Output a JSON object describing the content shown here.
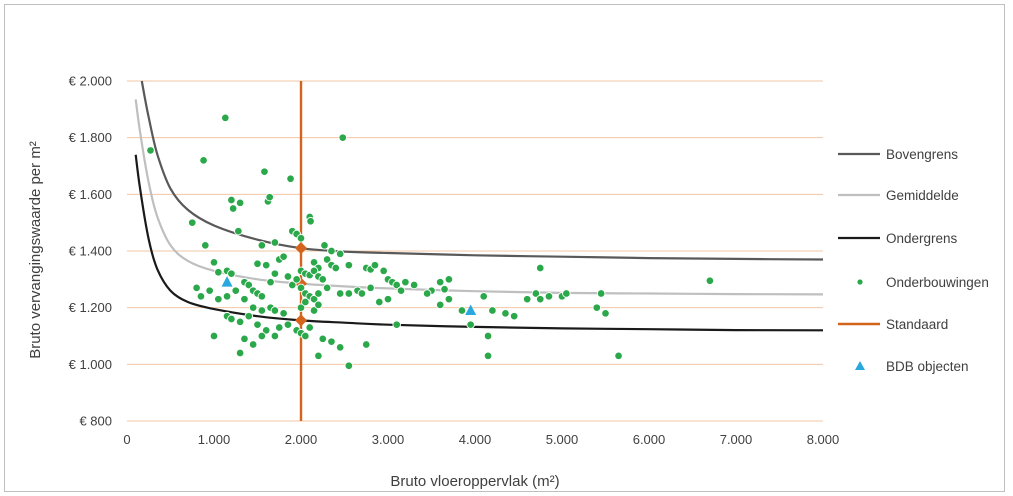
{
  "chart_data": {
    "type": "scatter",
    "xlabel": "Bruto vloeroppervlak (m²)",
    "ylabel": "Bruto vervangingswaarde per m²",
    "xlim": [
      0,
      8000
    ],
    "ylim": [
      800,
      2000
    ],
    "x_ticks": [
      0,
      1000,
      2000,
      3000,
      4000,
      5000,
      6000,
      7000,
      8000
    ],
    "x_tick_labels": [
      "0",
      "1.000",
      "2.000",
      "3.000",
      "4.000",
      "5.000",
      "6.000",
      "7.000",
      "8.000"
    ],
    "y_ticks": [
      800,
      1000,
      1200,
      1400,
      1600,
      1800,
      2000
    ],
    "y_tick_labels": [
      "€ 800",
      "€ 1.000",
      "€ 1.200",
      "€ 1.400",
      "€ 1.600",
      "€ 1.800",
      "€ 2.000"
    ],
    "grid": "horizontal",
    "legend_position": "right",
    "colors": {
      "bovengrens": "#595959",
      "gemiddelde": "#bfbfbf",
      "ondergrens": "#1a1a1a",
      "onderbouwingen": "#2aa84a",
      "standaard": "#d4631c",
      "bdb": "#29a8e0",
      "grid": "#f2c6a4"
    },
    "series": [
      {
        "name": "Bovengrens",
        "kind": "line",
        "x": [
          170,
          250,
          350,
          500,
          700,
          1000,
          1500,
          2000,
          2500,
          3000,
          4000,
          5000,
          6000,
          7000,
          8000
        ],
        "y": [
          2000,
          1870,
          1740,
          1620,
          1545,
          1490,
          1440,
          1410,
          1398,
          1393,
          1385,
          1380,
          1375,
          1372,
          1370
        ]
      },
      {
        "name": "Gemiddelde",
        "kind": "line",
        "x": [
          100,
          150,
          250,
          350,
          500,
          700,
          1000,
          1500,
          2000,
          2500,
          3000,
          4000,
          5000,
          6000,
          7000,
          8000
        ],
        "y": [
          1935,
          1820,
          1640,
          1520,
          1420,
          1365,
          1330,
          1300,
          1285,
          1275,
          1268,
          1258,
          1252,
          1250,
          1248,
          1247
        ]
      },
      {
        "name": "Ondergrens",
        "kind": "line",
        "x": [
          100,
          150,
          250,
          350,
          500,
          700,
          1000,
          1500,
          2000,
          2500,
          3000,
          4000,
          5000,
          6000,
          7000,
          8000
        ],
        "y": [
          1740,
          1620,
          1440,
          1335,
          1260,
          1220,
          1195,
          1170,
          1155,
          1147,
          1140,
          1132,
          1127,
          1124,
          1121,
          1120
        ]
      },
      {
        "name": "Onderbouwingen",
        "kind": "scatter",
        "points": [
          [
            270,
            1755
          ],
          [
            1130,
            1870
          ],
          [
            2480,
            1800
          ],
          [
            880,
            1720
          ],
          [
            1880,
            1655
          ],
          [
            1580,
            1680
          ],
          [
            1620,
            1575
          ],
          [
            1640,
            1590
          ],
          [
            1200,
            1580
          ],
          [
            1300,
            1570
          ],
          [
            2100,
            1520
          ],
          [
            2110,
            1505
          ],
          [
            1220,
            1550
          ],
          [
            1900,
            1470
          ],
          [
            1950,
            1460
          ],
          [
            1550,
            1420
          ],
          [
            1700,
            1430
          ],
          [
            2000,
            1445
          ],
          [
            750,
            1500
          ],
          [
            1280,
            1470
          ],
          [
            900,
            1420
          ],
          [
            2270,
            1420
          ],
          [
            2350,
            1400
          ],
          [
            2450,
            1390
          ],
          [
            1750,
            1370
          ],
          [
            1800,
            1380
          ],
          [
            1500,
            1355
          ],
          [
            1600,
            1350
          ],
          [
            2150,
            1360
          ],
          [
            2200,
            1340
          ],
          [
            2000,
            1330
          ],
          [
            2050,
            1320
          ],
          [
            2100,
            1315
          ],
          [
            2150,
            1330
          ],
          [
            2200,
            1310
          ],
          [
            2250,
            1300
          ],
          [
            2300,
            1370
          ],
          [
            2350,
            1350
          ],
          [
            2400,
            1340
          ],
          [
            2550,
            1350
          ],
          [
            2750,
            1340
          ],
          [
            2800,
            1335
          ],
          [
            2850,
            1350
          ],
          [
            2950,
            1330
          ],
          [
            3000,
            1300
          ],
          [
            3050,
            1290
          ],
          [
            3100,
            1280
          ],
          [
            3200,
            1290
          ],
          [
            3300,
            1280
          ],
          [
            3700,
            1300
          ],
          [
            3600,
            1290
          ],
          [
            3650,
            1265
          ],
          [
            3500,
            1260
          ],
          [
            4750,
            1340
          ],
          [
            6700,
            1295
          ],
          [
            1000,
            1360
          ],
          [
            1050,
            1325
          ],
          [
            1150,
            1330
          ],
          [
            1200,
            1320
          ],
          [
            1350,
            1290
          ],
          [
            1400,
            1280
          ],
          [
            1450,
            1260
          ],
          [
            1500,
            1250
          ],
          [
            1550,
            1240
          ],
          [
            1650,
            1290
          ],
          [
            1700,
            1320
          ],
          [
            1850,
            1310
          ],
          [
            1900,
            1280
          ],
          [
            1950,
            1300
          ],
          [
            2000,
            1270
          ],
          [
            2050,
            1250
          ],
          [
            2100,
            1240
          ],
          [
            2150,
            1230
          ],
          [
            2200,
            1250
          ],
          [
            2300,
            1270
          ],
          [
            2450,
            1250
          ],
          [
            2550,
            1250
          ],
          [
            2650,
            1260
          ],
          [
            2700,
            1250
          ],
          [
            2800,
            1270
          ],
          [
            2900,
            1220
          ],
          [
            3000,
            1230
          ],
          [
            3150,
            1260
          ],
          [
            3450,
            1250
          ],
          [
            3600,
            1210
          ],
          [
            3700,
            1230
          ],
          [
            3850,
            1190
          ],
          [
            4100,
            1240
          ],
          [
            4200,
            1190
          ],
          [
            4350,
            1180
          ],
          [
            4450,
            1170
          ],
          [
            4600,
            1230
          ],
          [
            4700,
            1250
          ],
          [
            4750,
            1230
          ],
          [
            4850,
            1240
          ],
          [
            5000,
            1240
          ],
          [
            5050,
            1250
          ],
          [
            5400,
            1200
          ],
          [
            5450,
            1250
          ],
          [
            5500,
            1180
          ],
          [
            800,
            1270
          ],
          [
            850,
            1240
          ],
          [
            950,
            1260
          ],
          [
            1050,
            1230
          ],
          [
            1150,
            1240
          ],
          [
            1250,
            1260
          ],
          [
            1350,
            1230
          ],
          [
            1450,
            1200
          ],
          [
            1550,
            1190
          ],
          [
            1650,
            1200
          ],
          [
            1700,
            1190
          ],
          [
            1800,
            1180
          ],
          [
            2000,
            1200
          ],
          [
            2050,
            1220
          ],
          [
            2150,
            1190
          ],
          [
            2200,
            1210
          ],
          [
            1150,
            1170
          ],
          [
            1200,
            1160
          ],
          [
            1300,
            1150
          ],
          [
            1400,
            1170
          ],
          [
            1500,
            1140
          ],
          [
            1600,
            1120
          ],
          [
            1750,
            1130
          ],
          [
            1850,
            1140
          ],
          [
            1950,
            1120
          ],
          [
            2000,
            1110
          ],
          [
            2050,
            1100
          ],
          [
            2100,
            1130
          ],
          [
            2250,
            1090
          ],
          [
            2350,
            1080
          ],
          [
            2450,
            1060
          ],
          [
            2750,
            1070
          ],
          [
            3100,
            1140
          ],
          [
            3950,
            1140
          ],
          [
            4150,
            1100
          ],
          [
            1000,
            1100
          ],
          [
            1350,
            1090
          ],
          [
            1450,
            1070
          ],
          [
            1550,
            1100
          ],
          [
            1700,
            1100
          ],
          [
            1300,
            1040
          ],
          [
            2200,
            1030
          ],
          [
            2550,
            995
          ],
          [
            4150,
            1030
          ],
          [
            5650,
            1030
          ]
        ]
      },
      {
        "name": "Standaard",
        "kind": "vertical-line",
        "x": 2000,
        "markers": [
          [
            2000,
            1410
          ],
          [
            2000,
            1285
          ],
          [
            2000,
            1155
          ]
        ]
      },
      {
        "name": "BDB objecten",
        "kind": "scatter-triangle",
        "points": [
          [
            1150,
            1290
          ],
          [
            3950,
            1190
          ]
        ]
      }
    ]
  },
  "legend": {
    "items": [
      {
        "label": "Bovengrens",
        "key": "bovengrens",
        "symbol": "line"
      },
      {
        "label": "Gemiddelde",
        "key": "gemiddelde",
        "symbol": "line"
      },
      {
        "label": "Ondergrens",
        "key": "ondergrens",
        "symbol": "line"
      },
      {
        "label": "Onderbouwingen",
        "key": "onderbouwingen",
        "symbol": "dot"
      },
      {
        "label": "Standaard",
        "key": "standaard",
        "symbol": "line"
      },
      {
        "label": "BDB objecten",
        "key": "bdb",
        "symbol": "triangle"
      }
    ]
  }
}
